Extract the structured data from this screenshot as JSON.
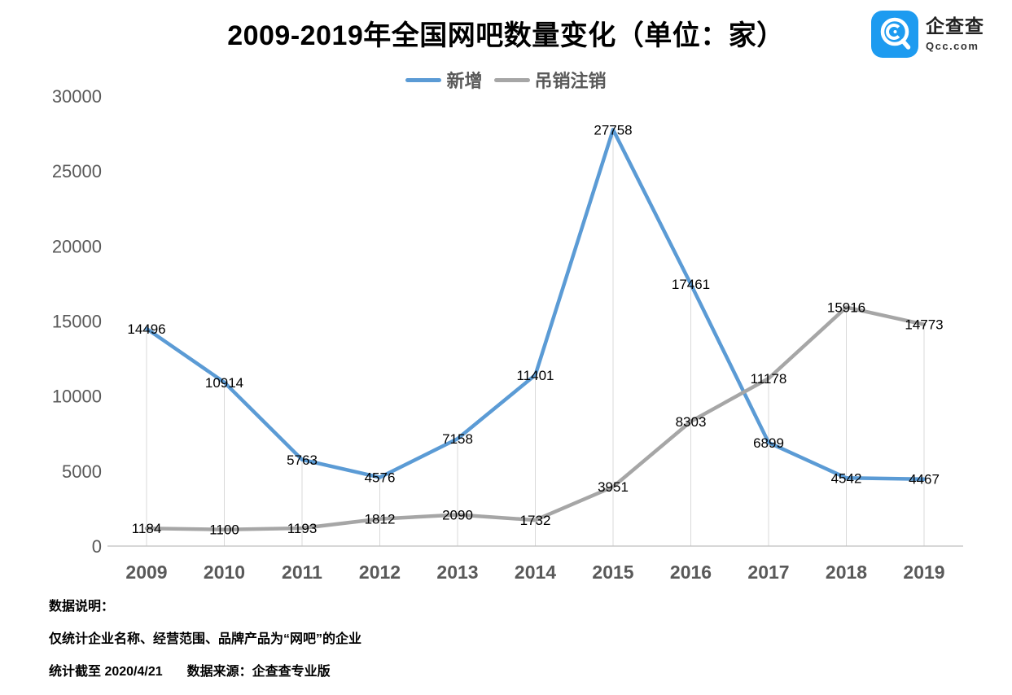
{
  "header": {
    "title": "2009-2019年全国网吧数量变化（单位：家）",
    "logo": {
      "name": "企查查",
      "domain": "Qcc.com",
      "brand_color": "#1d9bf0"
    }
  },
  "chart_data": {
    "type": "line",
    "title": "2009-2019年全国网吧数量变化（单位：家）",
    "categories": [
      "2009",
      "2010",
      "2011",
      "2012",
      "2013",
      "2014",
      "2015",
      "2016",
      "2017",
      "2018",
      "2019"
    ],
    "series": [
      {
        "name": "新增",
        "color": "#5b9bd5",
        "values": [
          14496,
          10914,
          5763,
          4576,
          7158,
          11401,
          27758,
          17461,
          6899,
          4542,
          4467
        ]
      },
      {
        "name": "吊销注销",
        "color": "#a6a6a6",
        "values": [
          1184,
          1100,
          1193,
          1812,
          2090,
          1732,
          3951,
          8303,
          11178,
          15916,
          14773
        ]
      }
    ],
    "ylim": [
      0,
      30000
    ],
    "yticks": [
      0,
      5000,
      10000,
      15000,
      20000,
      25000,
      30000
    ],
    "xlabel": "",
    "ylabel": "",
    "grid": "vertical-droplines-only",
    "legend_position": "top",
    "data_labels": "centered-on-points",
    "axis_text_color": "#595959",
    "dropline_color": "#d9d9d9",
    "axis_line_color": "#bfbfbf",
    "label_color": "#000000"
  },
  "notes": {
    "heading": "数据说明：",
    "scope": "仅统计企业名称、经营范围、品牌产品为“网吧”的企业",
    "stat_deadline": "统计截至 2020/4/21",
    "data_source": "数据来源：企查查专业版"
  }
}
